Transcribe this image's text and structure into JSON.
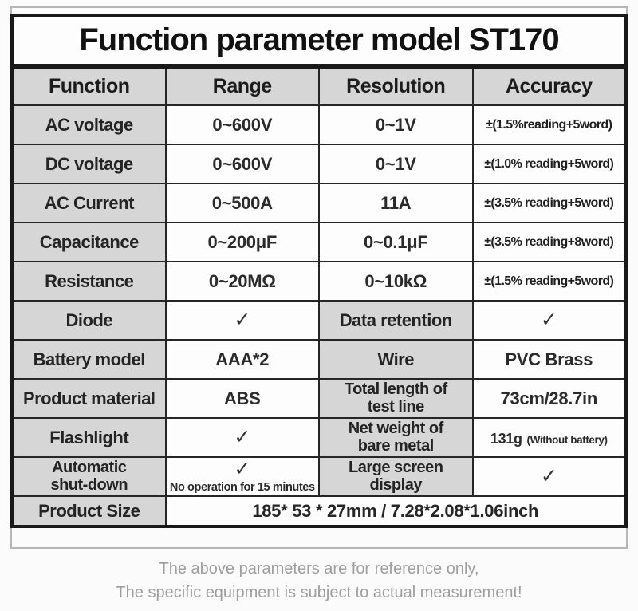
{
  "title": "Function parameter model ST170",
  "table": {
    "headers": [
      "Function",
      "Range",
      "Resolution",
      "Accuracy"
    ],
    "spec_rows": [
      {
        "function": "AC voltage",
        "range": "0~600V",
        "resolution": "0~1V",
        "accuracy": "±(1.5%reading+5word)"
      },
      {
        "function": "DC voltage",
        "range": "0~600V",
        "resolution": "0~1V",
        "accuracy": "±(1.0% reading+5word)"
      },
      {
        "function": "AC Current",
        "range": "0~500A",
        "resolution": "11A",
        "accuracy": "±(3.5% reading+5word)"
      },
      {
        "function": "Capacitance",
        "range": "0~200μF",
        "resolution": "0~0.1μF",
        "accuracy": "±(3.5% reading+8word)"
      },
      {
        "function": "Resistance",
        "range": "0~20MΩ",
        "resolution": "0~10kΩ",
        "accuracy": "±(1.5% reading+5word)"
      }
    ],
    "feature_rows": [
      {
        "label1": "Diode",
        "value1": "✓",
        "label2": "Data retention",
        "value2": "✓"
      },
      {
        "label1": "Battery model",
        "value1": "AAA*2",
        "label2": "Wire",
        "value2": "PVC Brass"
      },
      {
        "label1": "Product material",
        "value1": "ABS",
        "label2": "Total length of test line",
        "value2": "73cm/28.7in"
      },
      {
        "label1": "Flashlight",
        "value1": "✓",
        "label2": "Net weight of bare metal",
        "value2": "131g",
        "value2_note": "(Without battery)"
      },
      {
        "label1": "Automatic shut-down",
        "value1": "✓",
        "value1_note": "No operation for 15 minutes",
        "label2": "Large screen display",
        "value2": "✓"
      }
    ],
    "size_row": {
      "label": "Product Size",
      "value": "185* 53 * 27mm / 7.28*2.08*1.06inch"
    }
  },
  "footer": {
    "line1": "The above parameters are for reference only,",
    "line2": "The specific equipment is subject to actual measurement!"
  },
  "colors": {
    "cell_gray": "#d6d6d6",
    "border_dark": "#191919",
    "footer_text": "#9e9e9e",
    "frame_gray": "#b5b5b5",
    "background": "#fbfbfb"
  }
}
